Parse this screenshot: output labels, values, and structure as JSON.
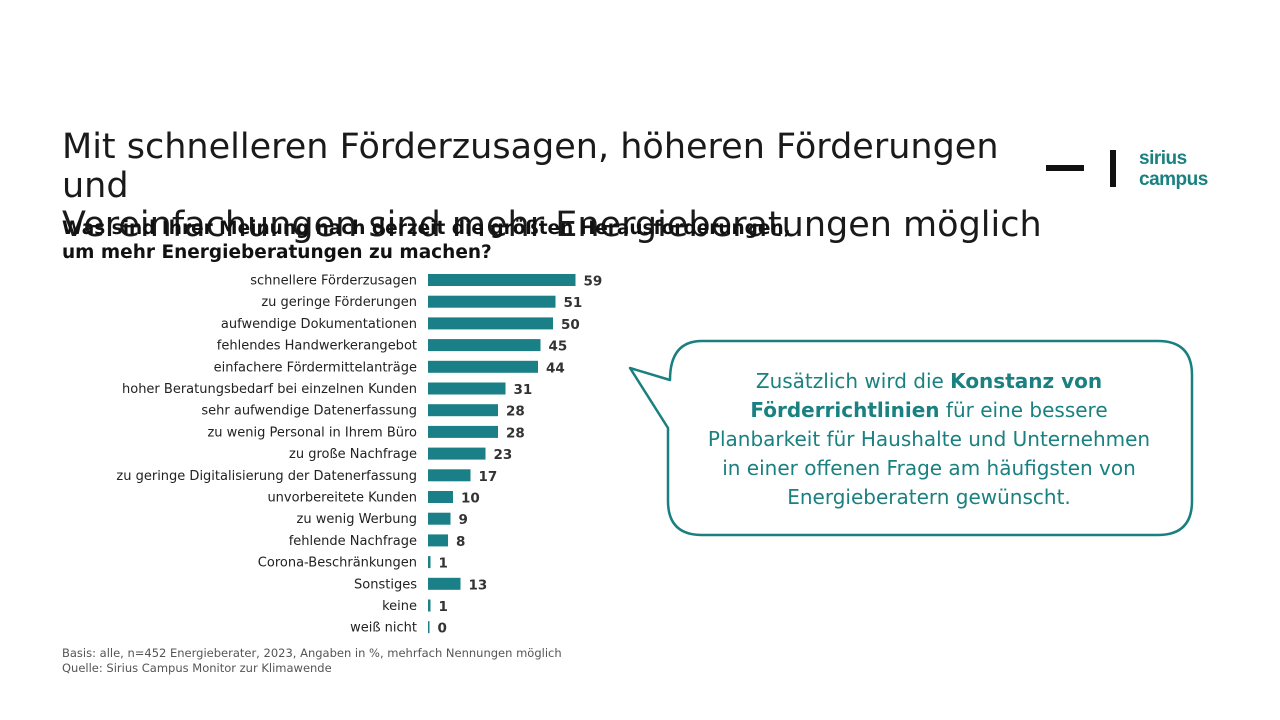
{
  "slide": {
    "title_line1": "Mit schnelleren Förderzusagen, höheren Förderungen und",
    "title_line2": "Vereinfachungen sind mehr Energieberatungen möglich",
    "question_line1": "Was sind Ihrer Meinung nach derzeit die größten Herausforderungen,",
    "question_line2": "um mehr Energieberatungen  zu machen?"
  },
  "logo": {
    "line1": "sirius",
    "line2": "campus",
    "color": "#1a8080"
  },
  "callout": {
    "text_1": "Zusätzlich wird die ",
    "bold_1": "Konstanz von",
    "bold_2": "Förderrichtlinien",
    "text_2": " für eine bessere",
    "line_3": "Planbarkeit für Haushalte und Unternehmen",
    "line_4": "in einer offenen Frage am häufigsten von",
    "line_5": "Energieberatern gewünscht.",
    "border_color": "#1a7f7f"
  },
  "footnote": {
    "basis": "Basis: alle, n=452 Energieberater, 2023, Angaben in %, mehrfach Nennungen  möglich",
    "source": "Quelle: Sirius Campus Monitor zur Klimawende"
  },
  "chart_data": {
    "type": "bar",
    "orientation": "horizontal",
    "bar_color": "#1a7f86",
    "unit": "%",
    "xlim": [
      0,
      100
    ],
    "categories": [
      "schnellere Förderzusagen",
      "zu geringe Förderungen",
      "aufwendige Dokumentationen",
      "fehlendes Handwerkerangebot",
      "einfachere Fördermittelanträge",
      "hoher Beratungsbedarf bei einzelnen Kunden",
      "sehr aufwendige Datenerfassung",
      "zu wenig Personal  in Ihrem Büro",
      "zu große Nachfrage",
      "zu geringe Digitalisierung der Datenerfassung",
      "unvorbereitete  Kunden",
      "zu wenig Werbung",
      "fehlende Nachfrage",
      "Corona-Beschränkungen",
      "Sonstiges",
      "keine",
      "weiß nicht"
    ],
    "values": [
      59,
      51,
      50,
      45,
      44,
      31,
      28,
      28,
      23,
      17,
      10,
      9,
      8,
      1,
      13,
      1,
      0
    ]
  }
}
